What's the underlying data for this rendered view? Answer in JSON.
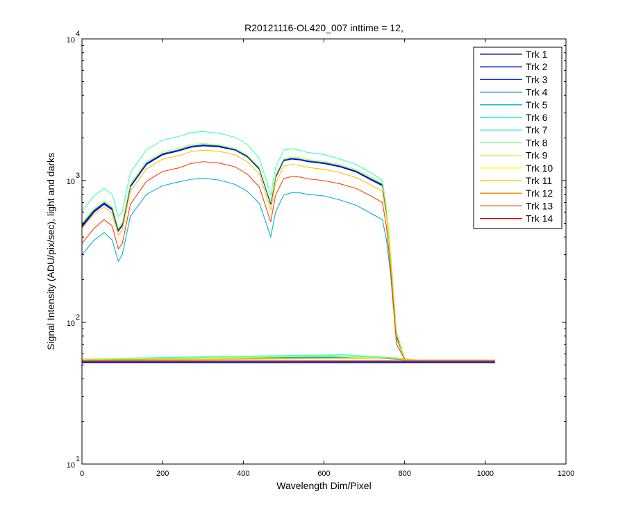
{
  "chart_data": {
    "type": "line",
    "title": "R20121116-OL420_007 inttime = 12,",
    "xlabel": "Wavelength Dim/Pixel",
    "ylabel": "Signal Intensity (ADU/pix/sec), light and darks",
    "xlim": [
      0,
      1200
    ],
    "ylim": [
      10,
      10000
    ],
    "yscale": "log",
    "grid": false,
    "legend_position": "top-right",
    "x_ticks": [
      "0",
      "200",
      "400",
      "600",
      "800",
      "1000",
      "1200"
    ],
    "y_ticks": [
      {
        "base": "10",
        "exp": "1"
      },
      {
        "base": "10",
        "exp": "2"
      },
      {
        "base": "10",
        "exp": "3"
      },
      {
        "base": "10",
        "exp": "4"
      }
    ],
    "series": [
      {
        "name": "Trk 1",
        "color": "#00008f"
      },
      {
        "name": "Trk 2",
        "color": "#0000d0"
      },
      {
        "name": "Trk 3",
        "color": "#0030ff"
      },
      {
        "name": "Trk 4",
        "color": "#0070c0"
      },
      {
        "name": "Trk 5",
        "color": "#00b0e0"
      },
      {
        "name": "Trk 6",
        "color": "#00e0e0"
      },
      {
        "name": "Trk 7",
        "color": "#40ffc0"
      },
      {
        "name": "Trk 8",
        "color": "#80ff80"
      },
      {
        "name": "Trk 9",
        "color": "#c0ff40"
      },
      {
        "name": "Trk 10",
        "color": "#ffff00"
      },
      {
        "name": "Trk 11",
        "color": "#ffc000"
      },
      {
        "name": "Trk 12",
        "color": "#ff8000"
      },
      {
        "name": "Trk 13",
        "color": "#ff4000"
      },
      {
        "name": "Trk 14",
        "color": "#e00000"
      }
    ],
    "light_profiles": [
      {
        "series": "Trk 1",
        "x": [
          0,
          30,
          55,
          75,
          90,
          100,
          120,
          160,
          200,
          240,
          270,
          300,
          340,
          380,
          410,
          440,
          460,
          468,
          480,
          500,
          520,
          540,
          560,
          600,
          640,
          680,
          720,
          745,
          755,
          765,
          780,
          800
        ],
        "y": [
          470,
          600,
          680,
          620,
          440,
          480,
          900,
          1300,
          1520,
          1620,
          1720,
          1760,
          1730,
          1640,
          1470,
          1200,
          800,
          680,
          1050,
          1380,
          1420,
          1400,
          1360,
          1320,
          1250,
          1150,
          1000,
          920,
          600,
          300,
          80,
          55
        ]
      },
      {
        "series": "Trk 2",
        "x": [
          0,
          30,
          55,
          75,
          90,
          100,
          120,
          160,
          200,
          240,
          270,
          300,
          340,
          380,
          410,
          440,
          460,
          468,
          480,
          500,
          520,
          540,
          560,
          600,
          640,
          680,
          720,
          745,
          755,
          765,
          780,
          800
        ],
        "y": [
          480,
          610,
          690,
          630,
          445,
          485,
          910,
          1310,
          1530,
          1630,
          1730,
          1780,
          1740,
          1650,
          1480,
          1210,
          810,
          690,
          1060,
          1390,
          1430,
          1410,
          1370,
          1330,
          1260,
          1160,
          1010,
          930,
          610,
          305,
          81,
          55
        ]
      },
      {
        "series": "Trk 4",
        "x": [
          0,
          30,
          55,
          75,
          90,
          100,
          120,
          160,
          200,
          240,
          270,
          300,
          340,
          380,
          410,
          440,
          460,
          468,
          480,
          500,
          520,
          540,
          560,
          600,
          640,
          680,
          720,
          745,
          755,
          765,
          780,
          800
        ],
        "y": [
          490,
          620,
          700,
          640,
          450,
          490,
          920,
          1330,
          1550,
          1650,
          1750,
          1790,
          1760,
          1660,
          1490,
          1220,
          820,
          700,
          1070,
          1400,
          1440,
          1420,
          1380,
          1340,
          1270,
          1170,
          1020,
          940,
          620,
          310,
          82,
          55
        ]
      },
      {
        "series": "Trk 5",
        "x": [
          0,
          30,
          55,
          75,
          90,
          100,
          120,
          160,
          200,
          240,
          270,
          300,
          340,
          380,
          410,
          440,
          460,
          468,
          480,
          500,
          520,
          540,
          560,
          600,
          640,
          680,
          720,
          745,
          755,
          765,
          780,
          800
        ],
        "y": [
          300,
          380,
          430,
          380,
          270,
          300,
          560,
          800,
          920,
          980,
          1020,
          1040,
          1010,
          940,
          840,
          690,
          470,
          400,
          600,
          790,
          820,
          820,
          800,
          780,
          730,
          670,
          580,
          530,
          380,
          220,
          70,
          55
        ]
      },
      {
        "series": "Trk 7",
        "x": [
          0,
          30,
          55,
          75,
          90,
          100,
          120,
          160,
          200,
          240,
          270,
          300,
          340,
          380,
          410,
          440,
          460,
          468,
          480,
          500,
          520,
          540,
          560,
          600,
          640,
          680,
          720,
          745,
          755,
          765,
          780,
          800
        ],
        "y": [
          610,
          780,
          880,
          800,
          560,
          600,
          1140,
          1650,
          1930,
          2050,
          2180,
          2220,
          2160,
          2020,
          1800,
          1430,
          950,
          790,
          1230,
          1640,
          1680,
          1640,
          1580,
          1530,
          1420,
          1300,
          1120,
          1000,
          640,
          320,
          85,
          56
        ]
      },
      {
        "series": "Trk 9",
        "x": [
          0,
          30,
          55,
          75,
          90,
          100,
          120,
          160,
          200,
          240,
          270,
          300,
          340,
          380,
          410,
          440,
          460,
          468,
          480,
          500,
          520,
          540,
          560,
          600,
          640,
          680,
          720,
          745,
          755,
          765,
          780,
          800
        ],
        "y": [
          500,
          640,
          720,
          660,
          465,
          505,
          950,
          1370,
          1600,
          1700,
          1800,
          1830,
          1790,
          1690,
          1510,
          1240,
          830,
          710,
          1090,
          1430,
          1470,
          1450,
          1410,
          1370,
          1300,
          1200,
          1050,
          960,
          630,
          315,
          83,
          55
        ]
      },
      {
        "series": "Trk 11",
        "x": [
          0,
          30,
          55,
          75,
          90,
          100,
          120,
          160,
          200,
          240,
          270,
          300,
          340,
          380,
          410,
          440,
          460,
          468,
          480,
          500,
          520,
          540,
          560,
          600,
          640,
          680,
          720,
          745,
          755,
          765,
          780,
          800
        ],
        "y": [
          460,
          580,
          650,
          590,
          410,
          450,
          840,
          1210,
          1420,
          1500,
          1600,
          1640,
          1610,
          1520,
          1360,
          1110,
          730,
          620,
          960,
          1260,
          1300,
          1280,
          1240,
          1200,
          1140,
          1050,
          920,
          840,
          560,
          280,
          76,
          55
        ]
      },
      {
        "series": "Trk 13",
        "x": [
          0,
          30,
          55,
          75,
          90,
          100,
          120,
          160,
          200,
          240,
          270,
          300,
          340,
          380,
          410,
          440,
          460,
          468,
          480,
          500,
          520,
          540,
          560,
          600,
          640,
          680,
          720,
          745,
          755,
          765,
          780,
          800
        ],
        "y": [
          360,
          460,
          530,
          480,
          330,
          360,
          680,
          990,
          1160,
          1230,
          1320,
          1360,
          1330,
          1250,
          1110,
          900,
          600,
          510,
          790,
          1030,
          1070,
          1060,
          1030,
          1000,
          950,
          880,
          770,
          700,
          470,
          240,
          70,
          55
        ]
      }
    ],
    "dark_baselines": [
      {
        "series": "Trk 1",
        "x": [
          0,
          1024
        ],
        "y": [
          52,
          52
        ]
      },
      {
        "series": "Trk 3",
        "x": [
          0,
          1024
        ],
        "y": [
          53,
          53
        ]
      },
      {
        "series": "Trk 5",
        "x": [
          0,
          300,
          700,
          820,
          1024
        ],
        "y": [
          54,
          56,
          57,
          54,
          54
        ]
      },
      {
        "series": "Trk 7",
        "x": [
          0,
          300,
          650,
          780,
          830,
          1024
        ],
        "y": [
          55,
          57,
          59,
          56,
          54,
          54
        ]
      },
      {
        "series": "Trk 9",
        "x": [
          0,
          300,
          600,
          760,
          830,
          1024
        ],
        "y": [
          55,
          56,
          58,
          56,
          54,
          54
        ]
      },
      {
        "series": "Trk 11",
        "x": [
          0,
          400,
          760,
          830,
          1024
        ],
        "y": [
          54,
          55,
          56,
          54,
          54
        ]
      },
      {
        "series": "Trk 13",
        "x": [
          0,
          1024
        ],
        "y": [
          53.5,
          53.5
        ]
      }
    ]
  }
}
